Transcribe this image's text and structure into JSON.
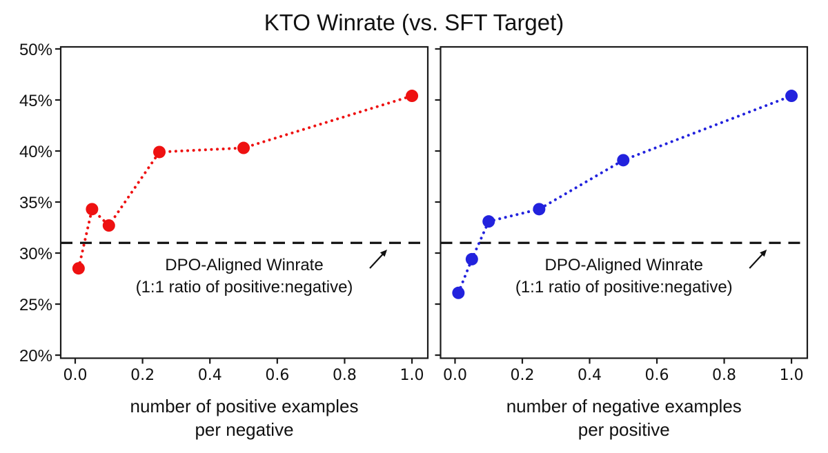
{
  "title": "KTO Winrate (vs. SFT Target)",
  "background": "#ffffff",
  "axis_color": "#1a1a1a",
  "chart_data": [
    {
      "type": "scatter",
      "id": "positive-ratio-sweep",
      "series": [
        {
          "name": "KTO winrate",
          "color": "#ee1111",
          "x": [
            0.01,
            0.05,
            0.1,
            0.25,
            0.5,
            1.0
          ],
          "y": [
            28.5,
            34.3,
            32.7,
            39.9,
            40.3,
            45.4
          ]
        }
      ],
      "xlabel": [
        "number of positive examples",
        "per negative"
      ],
      "xticks": {
        "values": [
          0.0,
          0.2,
          0.4,
          0.6,
          0.8,
          1.0
        ],
        "labels": [
          "0.0",
          "0.2",
          "0.4",
          "0.6",
          "0.8",
          "1.0"
        ]
      },
      "yticks": {
        "values": [
          50,
          45,
          40,
          35,
          30,
          25,
          20
        ],
        "labels": [
          "50%",
          "45%",
          "40%",
          "35%",
          "30%",
          "25%",
          "20%"
        ]
      },
      "xlim": [
        -0.043,
        1.047
      ],
      "ylim": [
        19.7,
        50.2
      ],
      "ytick_labels_visible": true,
      "grid": false,
      "legend": "none",
      "line_style": "dotted",
      "reference_line": {
        "value": 31,
        "style": "dashed",
        "color": "#111111",
        "annotation": [
          "DPO-Aligned Winrate",
          "(1:1 ratio of positive:negative)"
        ]
      }
    },
    {
      "type": "scatter",
      "id": "negative-ratio-sweep",
      "series": [
        {
          "name": "KTO winrate",
          "color": "#2222dd",
          "x": [
            0.01,
            0.05,
            0.1,
            0.25,
            0.5,
            1.0
          ],
          "y": [
            26.1,
            29.4,
            33.1,
            34.3,
            39.1,
            45.4
          ]
        }
      ],
      "xlabel": [
        "number of negative examples",
        "per positive"
      ],
      "xticks": {
        "values": [
          0.0,
          0.2,
          0.4,
          0.6,
          0.8,
          1.0
        ],
        "labels": [
          "0.0",
          "0.2",
          "0.4",
          "0.6",
          "0.8",
          "1.0"
        ]
      },
      "yticks": {
        "values": [
          50,
          45,
          40,
          35,
          30,
          25,
          20
        ],
        "labels": [
          "50%",
          "45%",
          "40%",
          "35%",
          "30%",
          "25%",
          "20%"
        ]
      },
      "xlim": [
        -0.043,
        1.047
      ],
      "ylim": [
        19.7,
        50.2
      ],
      "ytick_labels_visible": false,
      "grid": false,
      "legend": "none",
      "line_style": "dotted",
      "reference_line": {
        "value": 31,
        "style": "dashed",
        "color": "#111111",
        "annotation": [
          "DPO-Aligned Winrate",
          "(1:1 ratio of positive:negative)"
        ]
      }
    }
  ]
}
